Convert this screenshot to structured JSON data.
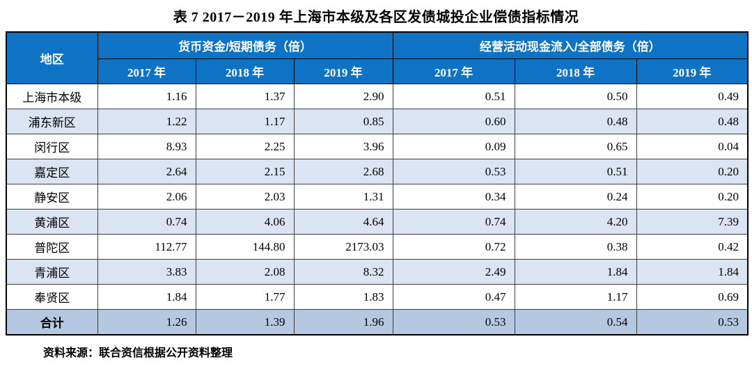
{
  "title": "表 7  2017－2019 年上海市本级及各区发债城投企业偿债指标情况",
  "table": {
    "region_header": "地区",
    "groups": [
      {
        "label": "货币资金/短期债务（倍）",
        "years": [
          "2017 年",
          "2018 年",
          "2019 年"
        ]
      },
      {
        "label": "经营活动现金流入/全部债务（倍）",
        "years": [
          "2017 年",
          "2018 年",
          "2019 年"
        ]
      }
    ],
    "rows": [
      {
        "region": "上海市本级",
        "values": [
          "1.16",
          "1.37",
          "2.90",
          "0.51",
          "0.50",
          "0.49"
        ],
        "is_total": false
      },
      {
        "region": "浦东新区",
        "values": [
          "1.22",
          "1.17",
          "0.85",
          "0.60",
          "0.48",
          "0.48"
        ],
        "is_total": false
      },
      {
        "region": "闵行区",
        "values": [
          "8.93",
          "2.25",
          "3.96",
          "0.09",
          "0.65",
          "0.04"
        ],
        "is_total": false
      },
      {
        "region": "嘉定区",
        "values": [
          "2.64",
          "2.15",
          "2.68",
          "0.53",
          "0.51",
          "0.20"
        ],
        "is_total": false
      },
      {
        "region": "静安区",
        "values": [
          "2.06",
          "2.03",
          "1.31",
          "0.34",
          "0.24",
          "0.20"
        ],
        "is_total": false
      },
      {
        "region": "黄浦区",
        "values": [
          "0.74",
          "4.06",
          "4.64",
          "0.74",
          "4.20",
          "7.39"
        ],
        "is_total": false
      },
      {
        "region": "普陀区",
        "values": [
          "112.77",
          "144.80",
          "2173.03",
          "0.72",
          "0.38",
          "0.42"
        ],
        "is_total": false
      },
      {
        "region": "青浦区",
        "values": [
          "3.83",
          "2.08",
          "8.32",
          "2.49",
          "1.84",
          "1.84"
        ],
        "is_total": false
      },
      {
        "region": "奉贤区",
        "values": [
          "1.84",
          "1.77",
          "1.83",
          "0.47",
          "1.17",
          "0.69"
        ],
        "is_total": false
      },
      {
        "region": "合计",
        "values": [
          "1.26",
          "1.39",
          "1.96",
          "0.53",
          "0.54",
          "0.53"
        ],
        "is_total": true
      }
    ]
  },
  "footer": {
    "source": "资料来源：联合资信根据公开资料整理"
  },
  "colors": {
    "header_bg": "#0e72c5",
    "header_text": "#ffffff",
    "alt_row_bg": "#dbe4f2",
    "total_row_bg": "#b5c8e1",
    "border": "#3d3d3d",
    "text": "#000000"
  }
}
